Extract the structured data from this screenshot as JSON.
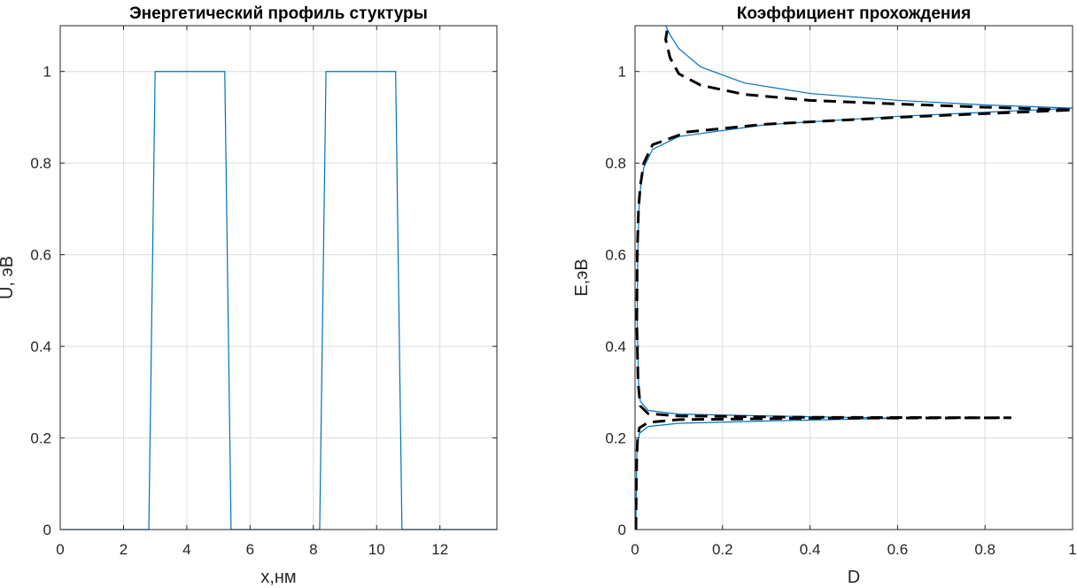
{
  "chart_data": [
    {
      "type": "line",
      "title": "Энергетический профиль стуктуры",
      "xlabel": "x,нм",
      "ylabel": "U, эВ",
      "xlim": [
        0,
        13.8
      ],
      "ylim": [
        0,
        1.1
      ],
      "xticks": [
        0,
        2,
        4,
        6,
        8,
        10,
        12
      ],
      "xtick_labels": [
        "0",
        "2",
        "4",
        "6",
        "8",
        "10",
        "12"
      ],
      "yticks": [
        0,
        0.2,
        0.4,
        0.6,
        0.8,
        1
      ],
      "ytick_labels": [
        "0",
        "0.2",
        "0.4",
        "0.6",
        "0.8",
        "1"
      ],
      "grid": true,
      "series": [
        {
          "color": "#0072bd",
          "style": "solid",
          "points": [
            [
              0,
              0
            ],
            [
              2.8,
              0
            ],
            [
              3.0,
              1
            ],
            [
              5.2,
              1
            ],
            [
              5.4,
              0
            ],
            [
              8.2,
              0
            ],
            [
              8.4,
              1
            ],
            [
              10.6,
              1
            ],
            [
              10.8,
              0
            ],
            [
              13.8,
              0
            ]
          ]
        }
      ]
    },
    {
      "type": "line",
      "title": "Коэффициент прохождения",
      "xlabel": "D",
      "ylabel": "E,эВ",
      "xlim": [
        0,
        1
      ],
      "ylim": [
        0,
        1.1
      ],
      "xticks": [
        0,
        0.2,
        0.4,
        0.6,
        0.8,
        1
      ],
      "xtick_labels": [
        "0",
        "0.2",
        "0.4",
        "0.6",
        "0.8",
        "1"
      ],
      "yticks": [
        0,
        0.2,
        0.4,
        0.6,
        0.8,
        1
      ],
      "ytick_labels": [
        "0",
        "0.2",
        "0.4",
        "0.6",
        "0.8",
        "1"
      ],
      "grid": true,
      "series": [
        {
          "color": "#0072bd",
          "style": "solid",
          "points": [
            [
              0.002,
              0
            ],
            [
              0.003,
              0.1
            ],
            [
              0.004,
              0.16
            ],
            [
              0.006,
              0.19
            ],
            [
              0.01,
              0.21
            ],
            [
              0.03,
              0.225
            ],
            [
              0.1,
              0.232
            ],
            [
              0.3,
              0.237
            ],
            [
              0.6,
              0.243
            ],
            [
              0.3,
              0.248
            ],
            [
              0.1,
              0.252
            ],
            [
              0.03,
              0.26
            ],
            [
              0.012,
              0.28
            ],
            [
              0.008,
              0.32
            ],
            [
              0.005,
              0.45
            ],
            [
              0.006,
              0.6
            ],
            [
              0.009,
              0.7
            ],
            [
              0.013,
              0.75
            ],
            [
              0.02,
              0.79
            ],
            [
              0.04,
              0.83
            ],
            [
              0.1,
              0.858
            ],
            [
              0.3,
              0.884
            ],
            [
              0.6,
              0.902
            ],
            [
              0.8,
              0.911
            ],
            [
              1.0,
              0.92
            ],
            [
              0.8,
              0.927
            ],
            [
              0.6,
              0.937
            ],
            [
              0.4,
              0.952
            ],
            [
              0.25,
              0.975
            ],
            [
              0.15,
              1.01
            ],
            [
              0.1,
              1.05
            ],
            [
              0.08,
              1.08
            ],
            [
              0.07,
              1.1
            ]
          ]
        },
        {
          "color": "#000000",
          "style": "dashed",
          "points": [
            [
              0.002,
              0
            ],
            [
              0.003,
              0.1
            ],
            [
              0.004,
              0.16
            ],
            [
              0.006,
              0.2
            ],
            [
              0.01,
              0.222
            ],
            [
              0.03,
              0.234
            ],
            [
              0.1,
              0.24
            ],
            [
              0.4,
              0.243
            ],
            [
              0.86,
              0.244
            ],
            [
              0.4,
              0.245
            ],
            [
              0.1,
              0.248
            ],
            [
              0.03,
              0.253
            ],
            [
              0.012,
              0.27
            ],
            [
              0.007,
              0.32
            ],
            [
              0.004,
              0.45
            ],
            [
              0.005,
              0.6
            ],
            [
              0.008,
              0.7
            ],
            [
              0.012,
              0.75
            ],
            [
              0.02,
              0.8
            ],
            [
              0.04,
              0.84
            ],
            [
              0.12,
              0.868
            ],
            [
              0.3,
              0.885
            ],
            [
              0.6,
              0.9
            ],
            [
              0.8,
              0.908
            ],
            [
              1.0,
              0.916
            ],
            [
              0.8,
              0.922
            ],
            [
              0.6,
              0.929
            ],
            [
              0.4,
              0.937
            ],
            [
              0.25,
              0.95
            ],
            [
              0.15,
              0.97
            ],
            [
              0.1,
              0.995
            ],
            [
              0.08,
              1.03
            ],
            [
              0.07,
              1.07
            ],
            [
              0.075,
              1.1
            ]
          ]
        }
      ]
    }
  ]
}
